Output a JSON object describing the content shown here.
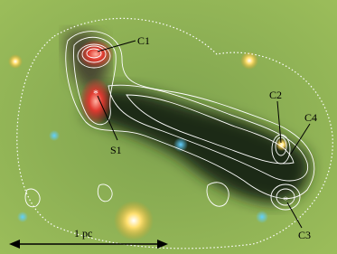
{
  "labels": [
    "C1",
    "S1",
    "C2",
    "C4",
    "C3"
  ],
  "scale_bar": "1 pc"
}
